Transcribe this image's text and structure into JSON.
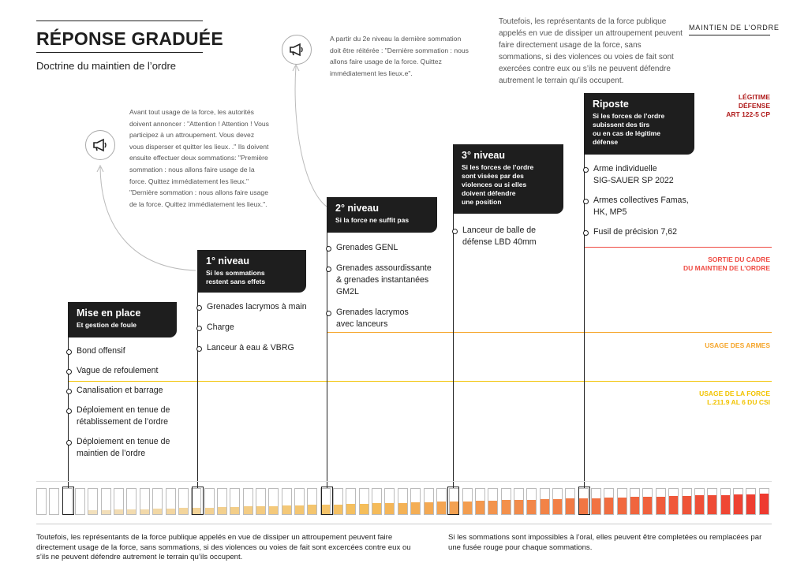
{
  "header": {
    "title": "RÉPONSE GRADUÉE",
    "subtitle": "Doctrine du maintien de l’ordre",
    "brand": "MAINTIEN DE L’ORDRE"
  },
  "intro_note": "Toutefois, les représentants de la force publique appelés en vue de dissiper un attroupement peuvent faire directement usage de la force, sans sommations, si des violences ou voies de fait sont exercées contre eux ou s’ils ne peuvent défendre autrement le terrain qu’ils occupent.",
  "notes": {
    "first": "Avant tout usage de la force, les autorités doivent annoncer : \"Attention ! Attention ! Vous participez à un attroupement. Vous devez vous disperser et quitter les lieux. .\" Ils doivent ensuite effectuer deux sommations: \"Première sommation : nous allons faire usage de la force. Quittez immédiatement les lieux.\" \"Dernière sommation : nous allons faire usage de la force. Quittez immédiatement les lieux.\".",
    "second": "A partir du 2e niveau la dernière sommation doit être réitérée : \"Dernière sommation : nous allons faire usage de la force. Quittez immédiatement les lieux.e\"."
  },
  "icons": {
    "megaphone": "megaphone-icon"
  },
  "levels": [
    {
      "title": "Mise en place",
      "subtitle": "Et gestion de foule",
      "items": [
        "Bond offensif",
        "Vague de refoulement",
        "Canalisation et barrage",
        "Déploiement en tenue de\nrétablissement de l’ordre",
        "Déploiement en tenue de\nmaintien de l’ordre"
      ]
    },
    {
      "title": "1° niveau",
      "subtitle": "Si les sommations\nrestent sans effets",
      "items": [
        "Grenades lacrymos à main",
        "Charge",
        "Lanceur à eau & VBRG"
      ]
    },
    {
      "title": "2° niveau",
      "subtitle": "Si la force ne suffit pas",
      "items": [
        "Grenades GENL",
        "Grenades assourdissante\n& grenades instantanées\nGM2L",
        "Grenades lacrymos\navec lanceurs"
      ]
    },
    {
      "title": "3° niveau",
      "subtitle": "Si les forces de l’ordre\nsont visées par des\nviolences ou si elles\ndoivent défendre\nune position",
      "items": [
        "Lanceur de balle de\ndéfense LBD 40mm"
      ]
    },
    {
      "title": "Riposte",
      "subtitle": "Si les forces de l’ordre\nsubissent des tirs\nou en cas de légitime\ndéfense",
      "items": [
        "Arme individuelle\nSIG-SAUER SP 2022",
        "Armes collectives Famas,\nHK, MP5",
        "Fusil de précision 7,62"
      ]
    }
  ],
  "zones": [
    {
      "label": "LÉGITIME\nDÉFENSE\nART 122-5 CP",
      "color": "#b01c1c"
    },
    {
      "label": "SORTIE DU CADRE\nDU MAINTIEN DE L’ORDRE",
      "color": "#ef4b43"
    },
    {
      "label": "USAGE DES ARMES",
      "color": "#f5a52a"
    },
    {
      "label": "USAGE DE LA FORCE\nL.211.9 AL 6 DU CSI",
      "color": "#f2c300"
    }
  ],
  "gauge": {
    "cell_count": 57,
    "start_color": "#f1e6cf",
    "end_color": "#ee3a30"
  },
  "footer": {
    "left": "Toutefois, les représentants de la force publique appelés en vue de dissiper un attroupement peuvent faire directement usage de la force, sans sommations, si des violences ou voies de fait sont excercées contre eux ou s’ils ne peuvent défendre autrement le terrain qu’ils occupent.",
    "right": "Si les sommations sont impossibles à l’oral, elles peuvent être completées ou remplacées par une fusée rouge pour chaque sommations."
  }
}
